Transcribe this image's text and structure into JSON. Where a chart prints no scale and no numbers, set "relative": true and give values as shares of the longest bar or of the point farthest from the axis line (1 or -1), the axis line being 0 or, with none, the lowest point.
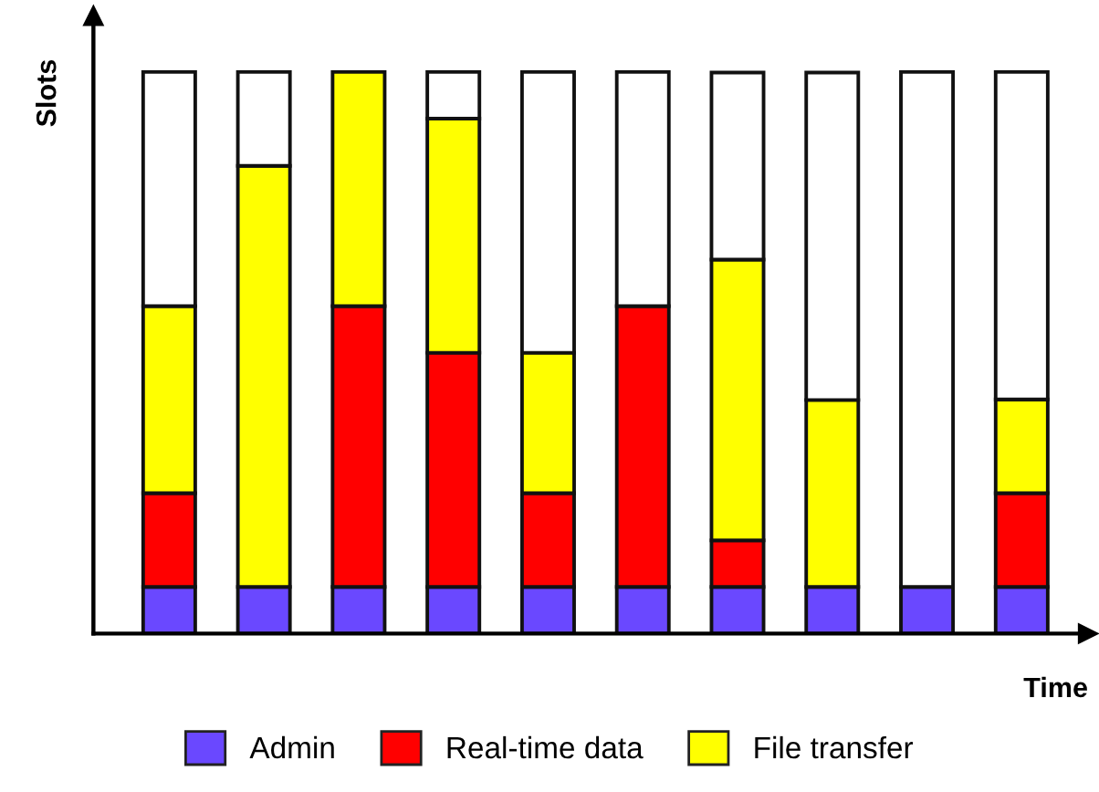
{
  "chart_data": {
    "type": "bar",
    "stacked": true,
    "relative": true,
    "xlabel": "Time",
    "ylabel": "Slots",
    "categories": [
      null,
      null,
      null,
      null,
      null,
      null,
      null,
      null,
      null,
      null
    ],
    "series": [
      {
        "name": "Admin",
        "color": "#6a48ff",
        "values": [
          0.083,
          0.083,
          0.083,
          0.083,
          0.083,
          0.083,
          0.083,
          0.083,
          0.083,
          0.083
        ]
      },
      {
        "name": "Real-time data",
        "color": "#ff0000",
        "values": [
          0.167,
          0,
          0.5,
          0.417,
          0.167,
          0.5,
          0.083,
          0,
          0,
          0.167
        ]
      },
      {
        "name": "File transfer",
        "color": "#ffff00",
        "values": [
          0.333,
          0.75,
          0.417,
          0.417,
          0.25,
          0,
          0.5,
          0.333,
          0,
          0.167
        ]
      },
      {
        "color": "#ffffff",
        "values": [
          0.417,
          0.167,
          0,
          0.083,
          0.5,
          0.417,
          0.333,
          0.583,
          0.917,
          0.583
        ]
      }
    ],
    "grid": false,
    "legend": "bottom"
  }
}
